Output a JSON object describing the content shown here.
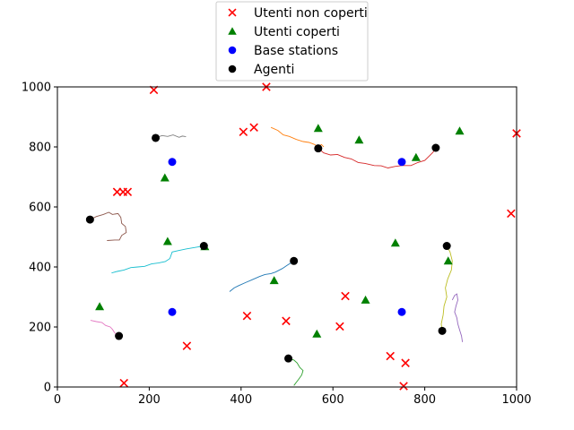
{
  "chart_data": {
    "type": "scatter",
    "title": "",
    "xlabel": "",
    "ylabel": "",
    "xlim": [
      0,
      1000
    ],
    "ylim": [
      0,
      1000
    ],
    "xticks": [
      0,
      200,
      400,
      600,
      800,
      1000
    ],
    "yticks": [
      0,
      200,
      400,
      600,
      800,
      1000
    ],
    "grid": false,
    "legend_placement": "top-center",
    "legend": [
      {
        "label": "Utenti non coperti",
        "marker": "x",
        "color": "#ff0000"
      },
      {
        "label": "Utenti coperti",
        "marker": "triangle",
        "color": "#008000"
      },
      {
        "label": "Base stations",
        "marker": "circle",
        "color": "#0000ff"
      },
      {
        "label": "Agenti",
        "marker": "circle",
        "color": "#000000"
      }
    ],
    "series": [
      {
        "name": "Utenti non coperti",
        "marker": "x",
        "color": "#ff0000",
        "points": [
          [
            210,
            990
          ],
          [
            455,
            1000
          ],
          [
            1000,
            845
          ],
          [
            405,
            850
          ],
          [
            428,
            865
          ],
          [
            130,
            650
          ],
          [
            143,
            650
          ],
          [
            153,
            650
          ],
          [
            988,
            578
          ],
          [
            627,
            303
          ],
          [
            413,
            237
          ],
          [
            498,
            220
          ],
          [
            615,
            202
          ],
          [
            282,
            137
          ],
          [
            725,
            103
          ],
          [
            758,
            80
          ],
          [
            145,
            13
          ],
          [
            754,
            3
          ]
        ]
      },
      {
        "name": "Utenti coperti",
        "marker": "triangle",
        "color": "#008000",
        "points": [
          [
            568,
            862
          ],
          [
            657,
            823
          ],
          [
            876,
            853
          ],
          [
            781,
            765
          ],
          [
            234,
            697
          ],
          [
            240,
            485
          ],
          [
            321,
            468
          ],
          [
            736,
            480
          ],
          [
            851,
            420
          ],
          [
            472,
            355
          ],
          [
            671,
            290
          ],
          [
            92,
            268
          ],
          [
            565,
            177
          ]
        ]
      },
      {
        "name": "Base stations",
        "marker": "circle",
        "color": "#0000ff",
        "points": [
          [
            250,
            750
          ],
          [
            750,
            750
          ],
          [
            250,
            250
          ],
          [
            750,
            250
          ]
        ]
      },
      {
        "name": "Agenti",
        "marker": "circle",
        "color": "#000000",
        "points": [
          [
            214,
            830
          ],
          [
            568,
            795
          ],
          [
            824,
            797
          ],
          [
            71,
            558
          ],
          [
            319,
            470
          ],
          [
            515,
            420
          ],
          [
            848,
            470
          ],
          [
            134,
            170
          ],
          [
            838,
            187
          ],
          [
            503,
            95
          ]
        ]
      }
    ],
    "trajectories": [
      {
        "color": "#7f7f7f",
        "points": [
          [
            214,
            830
          ],
          [
            228,
            838
          ],
          [
            240,
            835
          ],
          [
            252,
            840
          ],
          [
            265,
            832
          ],
          [
            272,
            836
          ],
          [
            280,
            834
          ]
        ]
      },
      {
        "color": "#ff7f0e",
        "points": [
          [
            465,
            865
          ],
          [
            480,
            855
          ],
          [
            492,
            840
          ],
          [
            505,
            835
          ],
          [
            520,
            825
          ],
          [
            535,
            818
          ],
          [
            548,
            815
          ],
          [
            560,
            808
          ],
          [
            568,
            800
          ],
          [
            575,
            808
          ],
          [
            580,
            800
          ]
        ]
      },
      {
        "color": "#d62728",
        "points": [
          [
            568,
            795
          ],
          [
            580,
            780
          ],
          [
            595,
            773
          ],
          [
            610,
            775
          ],
          [
            625,
            765
          ],
          [
            640,
            760
          ],
          [
            655,
            748
          ],
          [
            670,
            745
          ],
          [
            690,
            738
          ],
          [
            705,
            737
          ],
          [
            720,
            730
          ],
          [
            735,
            735
          ],
          [
            750,
            738
          ],
          [
            770,
            738
          ],
          [
            785,
            748
          ],
          [
            800,
            755
          ],
          [
            810,
            770
          ],
          [
            818,
            782
          ],
          [
            824,
            797
          ]
        ]
      },
      {
        "color": "#8c564b",
        "points": [
          [
            71,
            558
          ],
          [
            85,
            568
          ],
          [
            100,
            575
          ],
          [
            112,
            582
          ],
          [
            120,
            575
          ],
          [
            132,
            578
          ],
          [
            138,
            565
          ],
          [
            140,
            545
          ],
          [
            148,
            535
          ],
          [
            150,
            515
          ],
          [
            140,
            505
          ],
          [
            135,
            490
          ],
          [
            125,
            490
          ],
          [
            108,
            488
          ]
        ]
      },
      {
        "color": "#17becf",
        "points": [
          [
            118,
            380
          ],
          [
            130,
            385
          ],
          [
            145,
            390
          ],
          [
            160,
            398
          ],
          [
            175,
            400
          ],
          [
            190,
            402
          ],
          [
            205,
            410
          ],
          [
            220,
            413
          ],
          [
            235,
            418
          ],
          [
            245,
            428
          ],
          [
            250,
            450
          ],
          [
            265,
            455
          ],
          [
            280,
            460
          ],
          [
            300,
            465
          ],
          [
            319,
            470
          ]
        ]
      },
      {
        "color": "#1f77b4",
        "points": [
          [
            375,
            318
          ],
          [
            385,
            330
          ],
          [
            395,
            338
          ],
          [
            410,
            348
          ],
          [
            425,
            358
          ],
          [
            440,
            368
          ],
          [
            452,
            375
          ],
          [
            465,
            378
          ],
          [
            475,
            383
          ],
          [
            490,
            395
          ],
          [
            500,
            405
          ],
          [
            510,
            415
          ],
          [
            515,
            420
          ]
        ]
      },
      {
        "color": "#bcbd22",
        "points": [
          [
            848,
            470
          ],
          [
            855,
            450
          ],
          [
            860,
            420
          ],
          [
            858,
            390
          ],
          [
            850,
            360
          ],
          [
            845,
            330
          ],
          [
            848,
            300
          ],
          [
            842,
            270
          ],
          [
            840,
            240
          ],
          [
            836,
            210
          ],
          [
            838,
            187
          ],
          [
            845,
            190
          ]
        ]
      },
      {
        "color": "#9467bd",
        "points": [
          [
            860,
            290
          ],
          [
            865,
            305
          ],
          [
            870,
            310
          ],
          [
            872,
            290
          ],
          [
            868,
            270
          ],
          [
            865,
            250
          ],
          [
            870,
            230
          ],
          [
            872,
            210
          ],
          [
            876,
            190
          ],
          [
            880,
            170
          ],
          [
            882,
            150
          ]
        ]
      },
      {
        "color": "#e377c2",
        "points": [
          [
            72,
            222
          ],
          [
            85,
            218
          ],
          [
            97,
            215
          ],
          [
            105,
            205
          ],
          [
            115,
            200
          ],
          [
            120,
            192
          ],
          [
            125,
            180
          ],
          [
            134,
            170
          ]
        ]
      },
      {
        "color": "#2ca02c",
        "points": [
          [
            503,
            95
          ],
          [
            515,
            90
          ],
          [
            522,
            80
          ],
          [
            528,
            65
          ],
          [
            535,
            55
          ],
          [
            532,
            40
          ],
          [
            525,
            25
          ],
          [
            520,
            15
          ],
          [
            515,
            5
          ]
        ]
      }
    ]
  }
}
